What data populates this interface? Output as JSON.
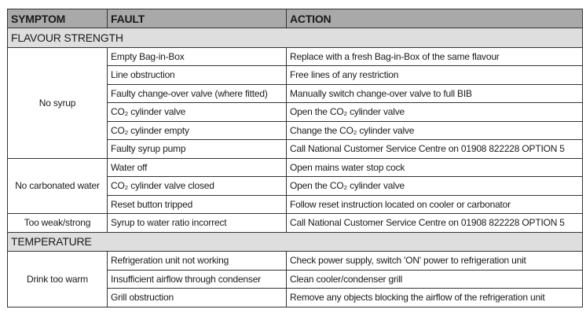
{
  "headers": [
    "SYMPTOM",
    "FAULT",
    "ACTION"
  ],
  "sections": [
    {
      "title": "FLAVOUR STRENGTH",
      "groups": [
        {
          "symptom": "No syrup",
          "rows": [
            {
              "fault": "Empty Bag-in-Box",
              "action": "Replace with a fresh Bag-in-Box of the same flavour"
            },
            {
              "fault": "Line obstruction",
              "action": "Free lines of any restriction"
            },
            {
              "fault": "Faulty change-over valve (where fitted)",
              "action": "Manually switch change-over valve to full BIB"
            },
            {
              "fault": "CO₂ cylinder valve",
              "action": "Open the CO₂ cylinder valve"
            },
            {
              "fault": "CO₂ cylinder empty",
              "action": "Change the CO₂ cylinder valve"
            },
            {
              "fault": "Faulty syrup pump",
              "action": "Call National Customer Service Centre on 01908 822228 OPTION 5"
            }
          ]
        },
        {
          "symptom": "No carbonated water",
          "rows": [
            {
              "fault": "Water off",
              "action": "Open mains water stop cock"
            },
            {
              "fault": "CO₂ cylinder valve closed",
              "action": "Open the CO₂ cylinder valve"
            },
            {
              "fault": "Reset button tripped",
              "action": "Follow reset instruction located on cooler or carbonator"
            }
          ]
        },
        {
          "symptom": "Too weak/strong",
          "rows": [
            {
              "fault": "Syrup to water ratio incorrect",
              "action": "Call National Customer Service Centre on 01908 822228 OPTION 5"
            }
          ]
        }
      ]
    },
    {
      "title": "TEMPERATURE",
      "groups": [
        {
          "symptom": "Drink too warm",
          "rows": [
            {
              "fault": "Refrigeration unit not working",
              "action": "Check power supply, switch 'ON' power to refrigeration unit"
            },
            {
              "fault": "Insufficient airflow through condenser",
              "action": "Clean cooler/condenser grill"
            },
            {
              "fault": "Grill obstruction",
              "action": "Remove any objects blocking the airflow of the refrigeration unit"
            }
          ]
        }
      ]
    }
  ]
}
